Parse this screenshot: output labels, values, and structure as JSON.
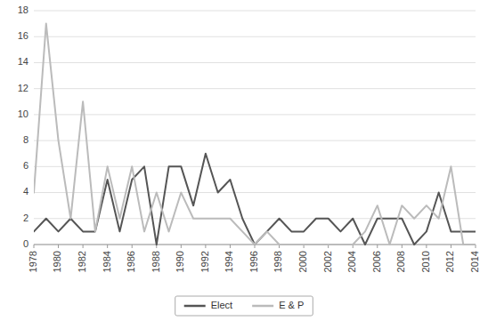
{
  "chart_data": {
    "type": "line",
    "x": [
      1978,
      1979,
      1980,
      1981,
      1982,
      1983,
      1984,
      1985,
      1986,
      1987,
      1988,
      1989,
      1990,
      1991,
      1992,
      1993,
      1994,
      1995,
      1996,
      1997,
      1998,
      1999,
      2000,
      2001,
      2002,
      2003,
      2004,
      2005,
      2006,
      2007,
      2008,
      2009,
      2010,
      2011,
      2012,
      2013,
      2014
    ],
    "series": [
      {
        "name": "Elect",
        "color": "#555555",
        "values": [
          1,
          2,
          1,
          2,
          1,
          1,
          5,
          1,
          5,
          6,
          0,
          6,
          6,
          3,
          7,
          4,
          5,
          2,
          0,
          1,
          2,
          1,
          1,
          2,
          2,
          1,
          2,
          0,
          2,
          2,
          2,
          0,
          1,
          4,
          1,
          1,
          1
        ]
      },
      {
        "name": "E & P",
        "color": "#bbbbbb",
        "values": [
          4,
          17,
          8,
          2,
          11,
          1,
          6,
          2,
          6,
          1,
          4,
          1,
          4,
          2,
          2,
          2,
          2,
          1,
          0,
          1,
          0,
          0,
          0,
          0,
          0,
          0,
          0,
          1,
          3,
          0,
          3,
          2,
          3,
          2,
          6,
          0,
          0
        ]
      }
    ],
    "xlim": [
      1978,
      2014
    ],
    "xticks": [
      1978,
      1980,
      1982,
      1984,
      1986,
      1988,
      1990,
      1992,
      1994,
      1996,
      1998,
      2000,
      2002,
      2004,
      2006,
      2008,
      2010,
      2012,
      2014
    ],
    "ylim": [
      0,
      18
    ],
    "yticks": [
      0,
      2,
      4,
      6,
      8,
      10,
      12,
      14,
      16,
      18
    ],
    "grid": true,
    "legend": "bottom"
  }
}
